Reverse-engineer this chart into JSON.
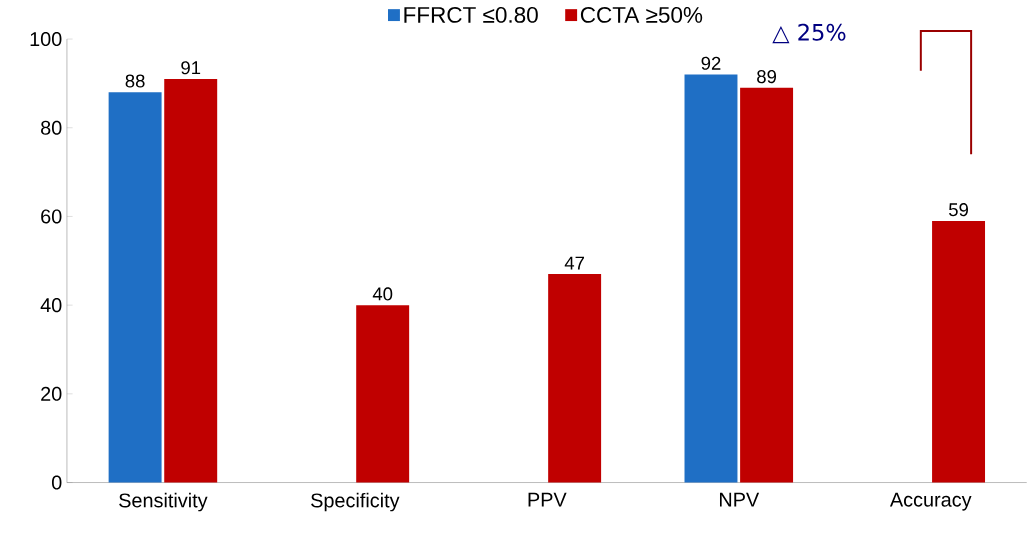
{
  "chart_data": {
    "type": "bar",
    "categories": [
      "Sensitivity",
      "Specificity",
      "PPV",
      "NPV",
      "Accuracy"
    ],
    "series": [
      {
        "name": "FFRCT ≤0.80",
        "color": "#1f6fc5",
        "values": [
          88,
          null,
          null,
          92,
          null
        ]
      },
      {
        "name": "CCTA ≥50%",
        "color": "#c00000",
        "values": [
          91,
          40,
          47,
          89,
          59
        ]
      }
    ],
    "ylim": [
      0,
      100
    ],
    "yticks": [
      0,
      20,
      40,
      60,
      80,
      100
    ],
    "data_labels": true,
    "legend": "top",
    "grid": false,
    "annotations": [
      "△ 25%"
    ]
  }
}
